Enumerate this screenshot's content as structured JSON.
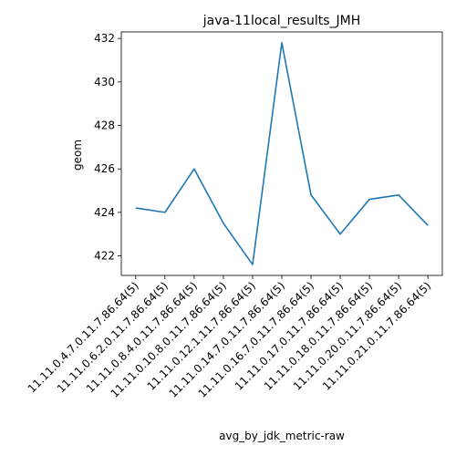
{
  "chart_data": {
    "type": "line",
    "title": "java-11local_results_JMH",
    "xlabel": "avg_by_jdk_metric-raw",
    "ylabel": "geom",
    "categories": [
      "11.11.0.4.7.0.11.7.86.64(5)",
      "11.11.0.6.2.0.11.7.86.64(5)",
      "11.11.0.8.4.0.11.7.86.64(5)",
      "11.11.0.10.8.0.11.7.86.64(5)",
      "11.11.0.12.1.11.7.86.64(5)",
      "11.11.0.14.7.0.11.7.86.64(5)",
      "11.11.0.16.7.0.11.7.86.64(5)",
      "11.11.0.17.0.11.7.86.64(5)",
      "11.11.0.18.0.11.7.86.64(5)",
      "11.11.0.20.0.11.7.86.64(5)",
      "11.11.0.21.0.11.7.86.64(5)"
    ],
    "series": [
      {
        "color": "#1f77b4",
        "values": [
          424.2,
          424.0,
          426.0,
          423.5,
          421.6,
          431.8,
          424.8,
          423.0,
          424.6,
          424.8,
          423.4
        ]
      }
    ],
    "yticks": [
      422,
      424,
      426,
      428,
      430,
      432
    ],
    "ylim": [
      421.1,
      432.3
    ],
    "grid": false
  }
}
